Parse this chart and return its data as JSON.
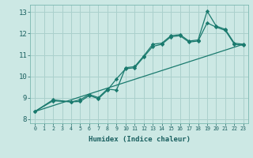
{
  "bg_color": "#cce8e4",
  "grid_color": "#aad0cc",
  "line_color": "#1a7a6e",
  "xlabel": "Humidex (Indice chaleur)",
  "xlim": [
    -0.5,
    23.5
  ],
  "ylim": [
    7.8,
    13.35
  ],
  "xticks": [
    0,
    1,
    2,
    3,
    4,
    5,
    6,
    7,
    8,
    9,
    10,
    11,
    12,
    13,
    14,
    15,
    16,
    17,
    18,
    19,
    20,
    21,
    22,
    23
  ],
  "yticks": [
    8,
    9,
    10,
    11,
    12,
    13
  ],
  "line1_x": [
    0,
    2,
    4,
    5,
    6,
    7,
    8,
    9,
    10,
    11,
    12,
    13,
    14,
    15,
    16,
    17,
    18,
    19,
    20,
    21,
    22,
    23
  ],
  "line1_y": [
    8.35,
    8.9,
    8.8,
    8.9,
    9.15,
    9.0,
    9.4,
    9.35,
    10.4,
    10.45,
    10.95,
    11.5,
    11.55,
    11.9,
    11.95,
    11.65,
    11.7,
    13.05,
    12.35,
    12.2,
    11.55,
    11.5
  ],
  "line2_x": [
    0,
    2,
    4,
    5,
    6,
    7,
    8,
    9,
    10,
    11,
    12,
    13,
    14,
    15,
    16,
    17,
    18,
    19,
    20,
    21,
    22,
    23
  ],
  "line2_y": [
    8.35,
    8.85,
    8.8,
    8.82,
    9.1,
    8.95,
    9.35,
    9.88,
    10.35,
    10.4,
    10.9,
    11.4,
    11.5,
    11.85,
    11.9,
    11.6,
    11.65,
    12.5,
    12.3,
    12.15,
    11.5,
    11.45
  ],
  "line3_x": [
    0,
    23
  ],
  "line3_y": [
    8.35,
    11.5
  ]
}
